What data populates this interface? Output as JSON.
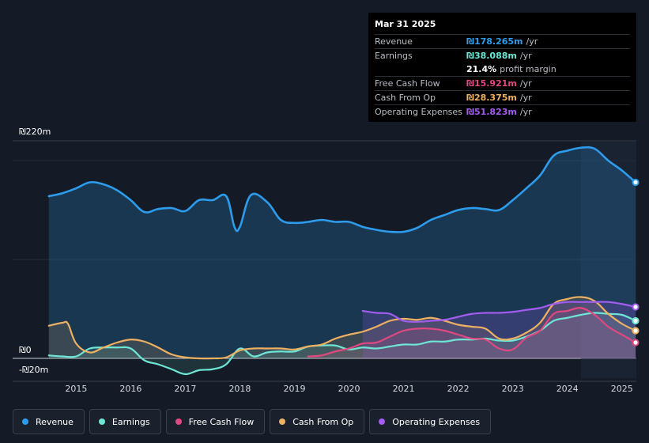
{
  "tooltip": {
    "date": "Mar 31 2025",
    "rows": [
      {
        "label": "Revenue",
        "value": "₪178.265m",
        "unit": "/yr",
        "color": "#2d9cec"
      },
      {
        "label": "Earnings",
        "value": "₪38.088m",
        "unit": "/yr",
        "color": "#6ee6d5"
      },
      {
        "label": "",
        "value": "21.4%",
        "unit": "profit margin",
        "color": "#ffffff"
      },
      {
        "label": "Free Cash Flow",
        "value": "₪15.921m",
        "unit": "/yr",
        "color": "#e0487f"
      },
      {
        "label": "Cash From Op",
        "value": "₪28.375m",
        "unit": "/yr",
        "color": "#eeb061"
      },
      {
        "label": "Operating Expenses",
        "value": "₪51.823m",
        "unit": "/yr",
        "color": "#a35cf0"
      }
    ]
  },
  "legend": [
    {
      "label": "Revenue",
      "color": "#2d9cec"
    },
    {
      "label": "Earnings",
      "color": "#6ee6d5"
    },
    {
      "label": "Free Cash Flow",
      "color": "#e0487f"
    },
    {
      "label": "Cash From Op",
      "color": "#eeb061"
    },
    {
      "label": "Operating Expenses",
      "color": "#a35cf0"
    }
  ],
  "chart_data": {
    "type": "area",
    "title": "",
    "xlabel": "",
    "ylabel": "",
    "y_top_label": "₪220m",
    "y_zero_label": "₪0",
    "y_bottom_label": "-₪20m",
    "ylim": [
      -20,
      220
    ],
    "xlim": [
      2014.3,
      2025.25
    ],
    "x_ticks": [
      "2015",
      "2016",
      "2017",
      "2018",
      "2019",
      "2020",
      "2021",
      "2022",
      "2023",
      "2024",
      "2025"
    ],
    "x_tick_values": [
      2015,
      2016,
      2017,
      2018,
      2019,
      2020,
      2021,
      2022,
      2023,
      2024,
      2025
    ],
    "highlight_from": 2024.25,
    "series": [
      {
        "name": "Revenue",
        "color": "#2d9cec",
        "x": [
          2014.5,
          2014.75,
          2015.0,
          2015.25,
          2015.5,
          2015.75,
          2016.0,
          2016.25,
          2016.5,
          2016.75,
          2017.0,
          2017.25,
          2017.5,
          2017.75,
          2017.9,
          2018.0,
          2018.2,
          2018.5,
          2018.75,
          2019.0,
          2019.25,
          2019.5,
          2019.75,
          2020.0,
          2020.25,
          2020.5,
          2020.75,
          2021.0,
          2021.25,
          2021.5,
          2021.75,
          2022.0,
          2022.25,
          2022.5,
          2022.75,
          2023.0,
          2023.25,
          2023.5,
          2023.75,
          2024.0,
          2024.25,
          2024.5,
          2024.75,
          2025.0,
          2025.25
        ],
        "values": [
          164,
          167,
          172,
          178,
          176,
          170,
          160,
          148,
          151,
          152,
          149,
          160,
          160,
          164,
          133,
          133,
          165,
          158,
          140,
          137,
          138,
          140,
          138,
          138,
          133,
          130,
          128,
          128,
          132,
          140,
          145,
          150,
          152,
          151,
          150,
          160,
          172,
          185,
          205,
          210,
          213,
          212,
          200,
          190,
          178
        ]
      },
      {
        "name": "Earnings",
        "color": "#6ee6d5",
        "x": [
          2014.5,
          2014.75,
          2015.0,
          2015.25,
          2015.5,
          2015.75,
          2016.0,
          2016.25,
          2016.5,
          2016.75,
          2017.0,
          2017.25,
          2017.5,
          2017.75,
          2018.0,
          2018.25,
          2018.5,
          2018.75,
          2019.0,
          2019.25,
          2019.5,
          2019.75,
          2020.0,
          2020.25,
          2020.5,
          2020.75,
          2021.0,
          2021.25,
          2021.5,
          2021.75,
          2022.0,
          2022.25,
          2022.5,
          2022.75,
          2023.0,
          2023.25,
          2023.5,
          2023.75,
          2024.0,
          2024.25,
          2024.5,
          2024.75,
          2025.0,
          2025.25
        ],
        "values": [
          3,
          2,
          2,
          10,
          11,
          11,
          10,
          -2,
          -6,
          -11,
          -16,
          -12,
          -11,
          -6,
          10,
          2,
          6,
          7,
          7,
          12,
          13,
          13,
          9,
          11,
          10,
          12,
          14,
          14,
          17,
          17,
          19,
          19,
          20,
          18,
          18,
          22,
          28,
          38,
          41,
          44,
          46,
          45,
          44,
          38
        ]
      },
      {
        "name": "Free Cash Flow",
        "color": "#e0487f",
        "x": [
          2019.25,
          2019.5,
          2019.75,
          2020.0,
          2020.25,
          2020.5,
          2020.75,
          2021.0,
          2021.25,
          2021.5,
          2021.75,
          2022.0,
          2022.25,
          2022.5,
          2022.75,
          2023.0,
          2023.25,
          2023.5,
          2023.75,
          2024.0,
          2024.25,
          2024.5,
          2024.75,
          2025.0,
          2025.25
        ],
        "values": [
          2,
          3,
          7,
          10,
          15,
          16,
          22,
          28,
          30,
          30,
          28,
          24,
          20,
          19,
          10,
          9,
          21,
          28,
          45,
          48,
          51,
          44,
          32,
          24,
          16
        ]
      },
      {
        "name": "Cash From Op",
        "color": "#eeb061",
        "x": [
          2014.5,
          2014.75,
          2014.85,
          2015.0,
          2015.25,
          2015.5,
          2015.75,
          2016.0,
          2016.25,
          2016.5,
          2016.75,
          2017.0,
          2017.25,
          2017.5,
          2017.75,
          2018.0,
          2018.25,
          2018.5,
          2018.75,
          2019.0,
          2019.25,
          2019.5,
          2019.75,
          2020.0,
          2020.25,
          2020.5,
          2020.75,
          2021.0,
          2021.25,
          2021.5,
          2021.75,
          2022.0,
          2022.25,
          2022.5,
          2022.75,
          2023.0,
          2023.25,
          2023.5,
          2023.75,
          2024.0,
          2024.25,
          2024.5,
          2024.75,
          2025.0,
          2025.25
        ],
        "values": [
          33,
          36,
          35,
          15,
          6,
          11,
          16,
          19,
          17,
          11,
          4,
          1,
          0,
          0,
          1,
          8,
          10,
          10,
          10,
          9,
          12,
          14,
          20,
          24,
          27,
          32,
          38,
          40,
          39,
          41,
          38,
          34,
          32,
          30,
          20,
          20,
          26,
          36,
          55,
          60,
          62,
          58,
          45,
          35,
          28
        ]
      },
      {
        "name": "Operating Expenses",
        "color": "#a35cf0",
        "x": [
          2020.25,
          2020.5,
          2020.75,
          2021.0,
          2021.25,
          2021.5,
          2021.75,
          2022.0,
          2022.25,
          2022.5,
          2022.75,
          2023.0,
          2023.25,
          2023.5,
          2023.75,
          2024.0,
          2024.25,
          2024.5,
          2024.75,
          2025.0,
          2025.25
        ],
        "values": [
          48,
          46,
          45,
          38,
          37,
          38,
          39,
          42,
          45,
          46,
          46,
          47,
          49,
          51,
          55,
          57,
          57,
          57,
          57,
          55,
          52
        ]
      }
    ]
  }
}
